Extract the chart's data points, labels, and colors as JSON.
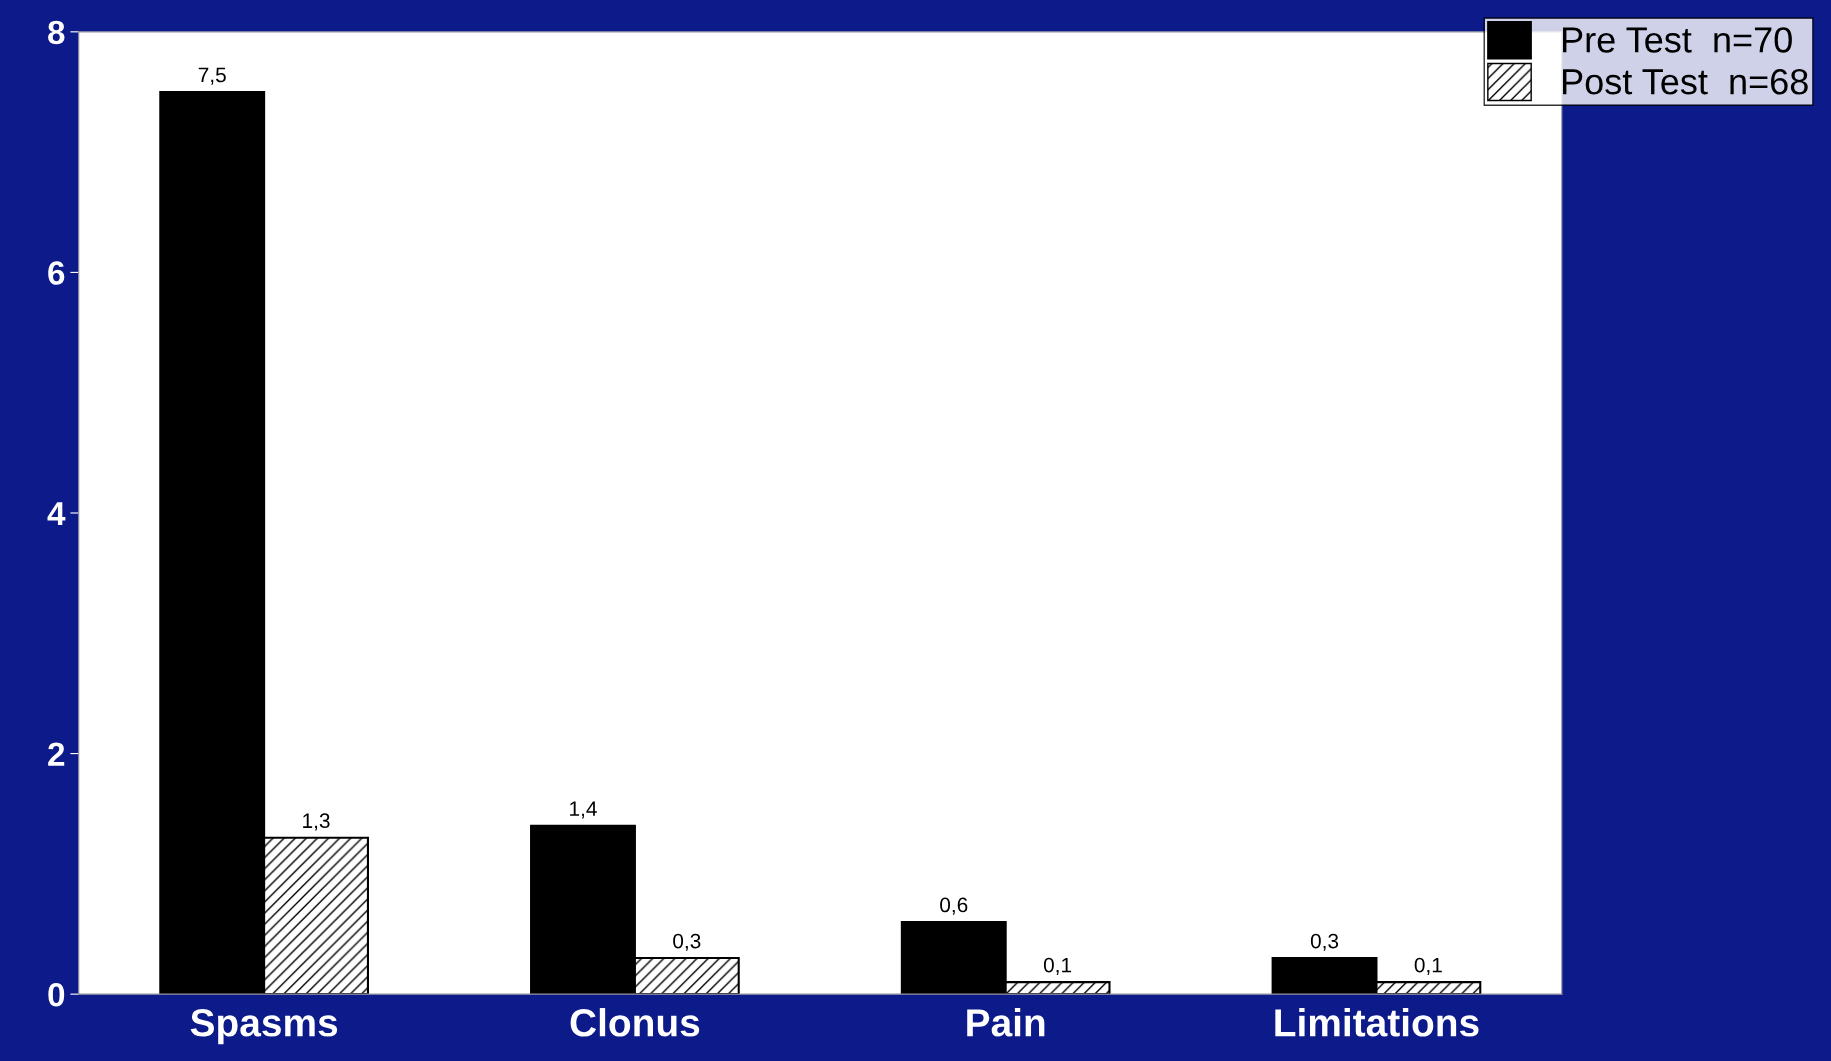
{
  "chart_data": {
    "type": "bar",
    "categories": [
      "Spasms",
      "Clonus",
      "Pain",
      "Limitations"
    ],
    "series": [
      {
        "name": "Pre Test  n=70",
        "color": "#000000",
        "values": [
          7.5,
          1.4,
          0.6,
          0.3
        ],
        "value_labels": [
          "7,5",
          "1,4",
          "0,6",
          "0,3"
        ]
      },
      {
        "name": "Post Test  n=68",
        "color": "#000000",
        "values": [
          1.3,
          0.3,
          0.1,
          0.1
        ],
        "value_labels": [
          "1,3",
          "0,3",
          "0,1",
          "0,1"
        ]
      }
    ],
    "ylim": [
      0,
      8
    ],
    "yticks": [
      0,
      2,
      4,
      6,
      8
    ],
    "legend": "top right"
  }
}
